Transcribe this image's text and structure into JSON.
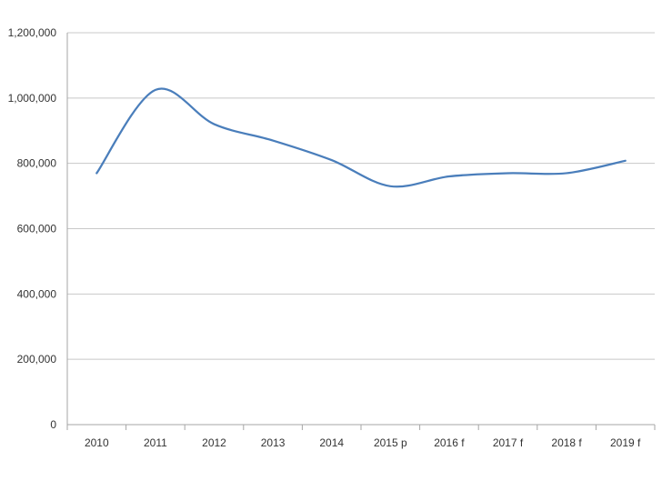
{
  "chart_data": {
    "type": "line",
    "title": "",
    "xlabel": "",
    "ylabel": "",
    "categories": [
      "2010",
      "2011",
      "2012",
      "2013",
      "2014",
      "2015 p",
      "2016 f",
      "2017 f",
      "2018 f",
      "2019 f"
    ],
    "series": [
      {
        "values": [
          770000,
          1025000,
          920000,
          870000,
          810000,
          730000,
          760000,
          770000,
          770000,
          808000
        ]
      }
    ],
    "y_ticks": [
      "0",
      "200,000",
      "400,000",
      "600,000",
      "800,000",
      "1,000,000",
      "1,200,000"
    ],
    "ylim": [
      0,
      1200000
    ],
    "grid": true,
    "legend": "none",
    "colors": {
      "line": "#4a7ebb",
      "grid": "#c8c8c8",
      "axis": "#a6a6a6",
      "text": "#333333"
    }
  }
}
